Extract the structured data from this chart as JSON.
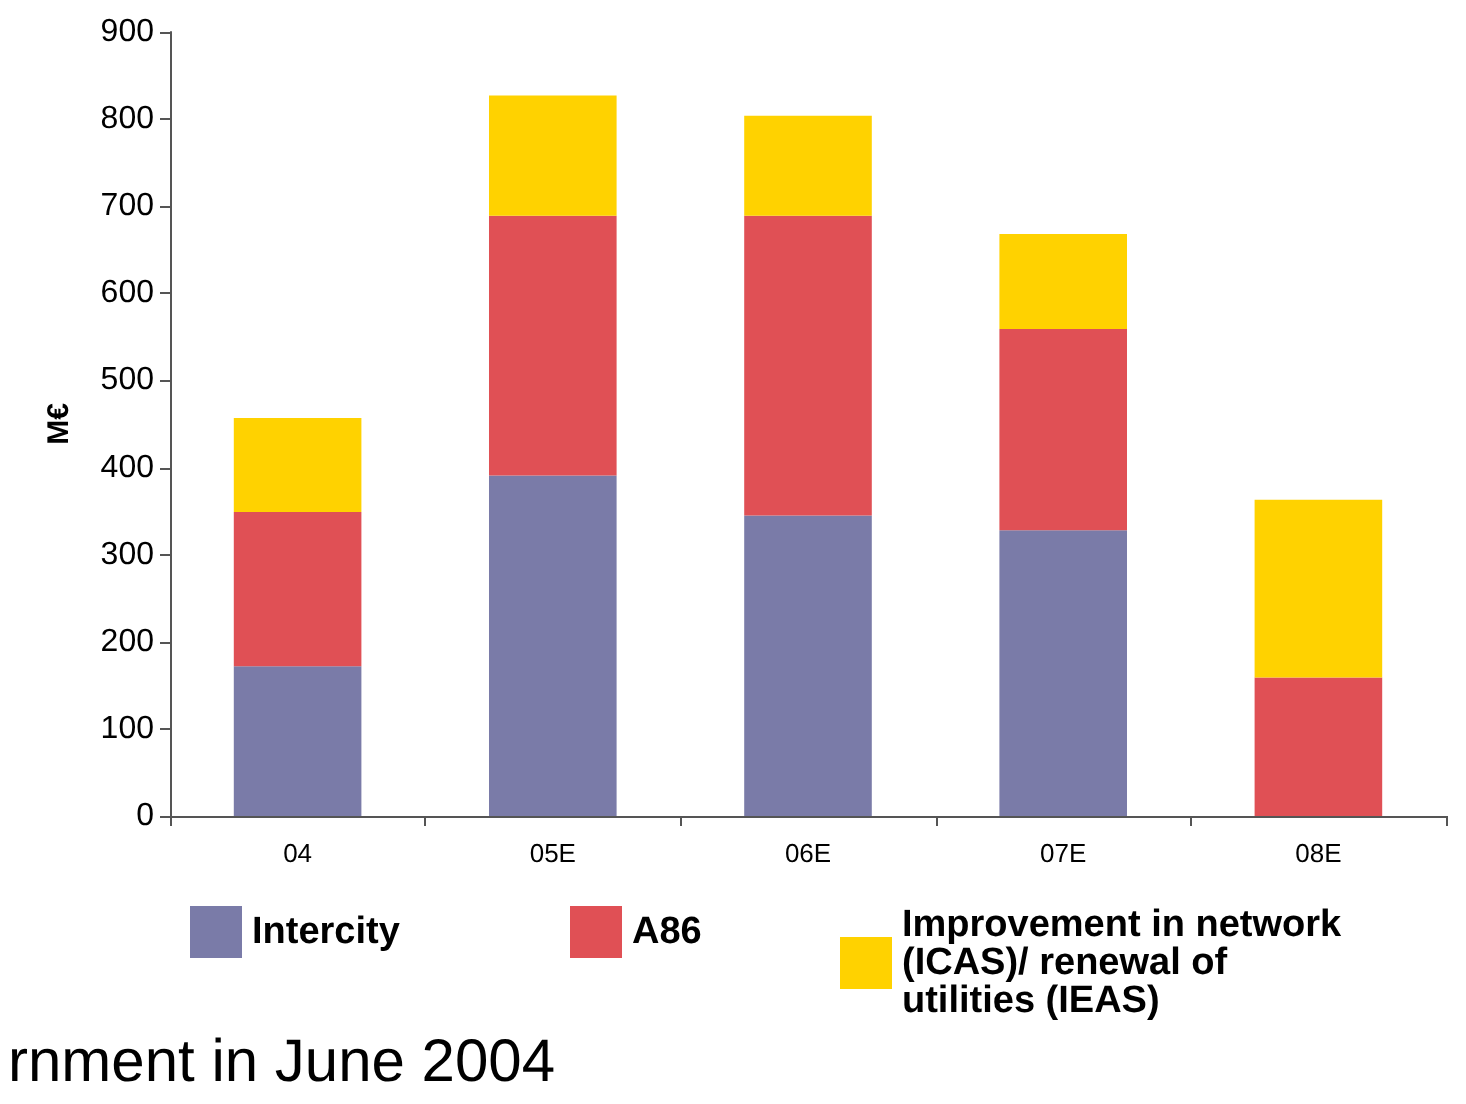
{
  "chart_data": {
    "type": "bar",
    "stacked": true,
    "ylabel": "M€",
    "categories": [
      "04",
      "05E",
      "06E",
      "07E",
      "08E"
    ],
    "series": [
      {
        "name": "Intercity",
        "color": "#7a7ba8",
        "values": [
          172,
          391,
          345,
          328,
          0
        ]
      },
      {
        "name": "A86",
        "color": "#e05055",
        "values": [
          177,
          298,
          344,
          231,
          159
        ]
      },
      {
        "name": "Improvement in network (ICAS)/ renewal of utilities (IEAS)",
        "color": "#ffd200",
        "values": [
          108,
          138,
          115,
          109,
          204
        ]
      }
    ],
    "ylim": [
      0,
      900
    ],
    "yticks": [
      0,
      100,
      200,
      300,
      400,
      500,
      600,
      700,
      800,
      900
    ],
    "grid": false,
    "legend": "bottom",
    "annotations": [
      "rnment in June 2004"
    ]
  }
}
